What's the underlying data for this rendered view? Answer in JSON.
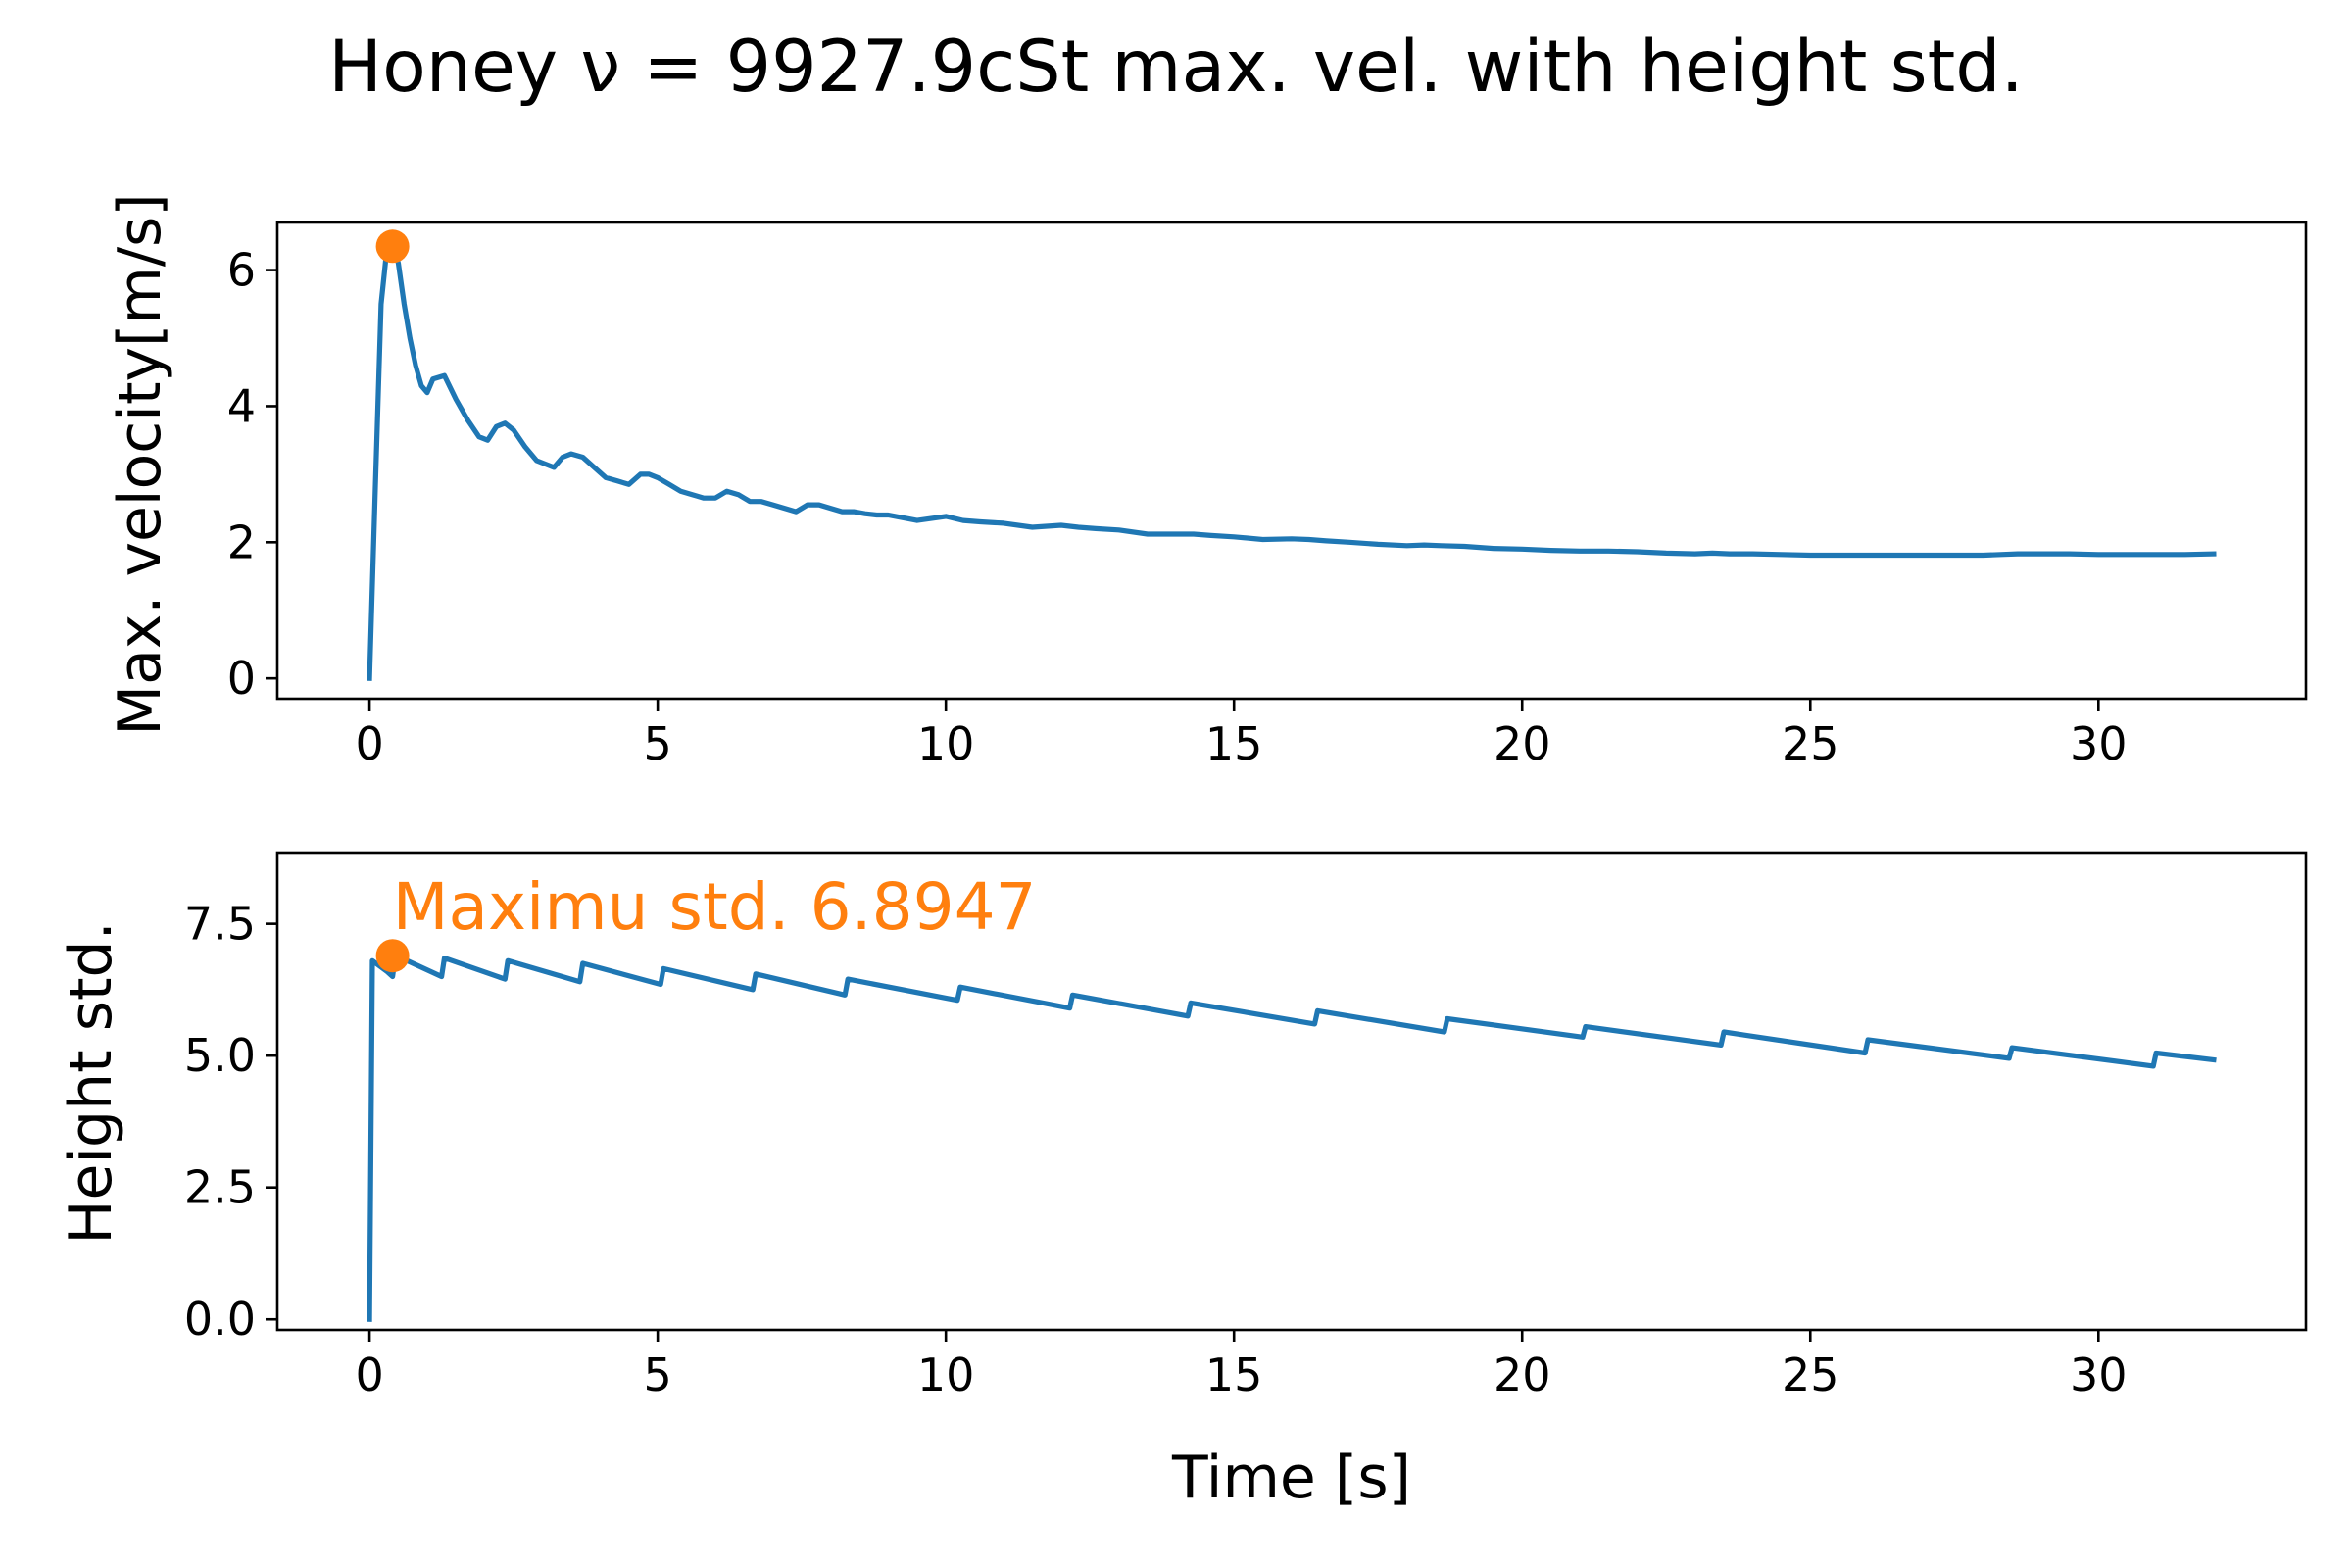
{
  "title": "Honey ν = 9927.9cSt  max. vel. with height std.",
  "colors": {
    "series": "#1f77b4",
    "marker": "#ff7f0e",
    "axes": "#000000",
    "background": "#ffffff"
  },
  "xlabel": "Time [s]",
  "chart_data": [
    {
      "type": "line",
      "id": "velocity",
      "ylabel": "Max. velocity[m/s]",
      "xlim": [
        -1.6,
        33.6
      ],
      "ylim": [
        -0.3,
        6.7
      ],
      "xticks": [
        0,
        5,
        10,
        15,
        20,
        25,
        30
      ],
      "xtick_labels": [
        "0",
        "5",
        "10",
        "15",
        "20",
        "25",
        "30"
      ],
      "yticks": [
        0,
        2,
        4,
        6
      ],
      "ytick_labels": [
        "0",
        "2",
        "4",
        "6"
      ],
      "grid": false,
      "series": [
        {
          "x": [
            0.0,
            0.1,
            0.2,
            0.3,
            0.4,
            0.5,
            0.6,
            0.7,
            0.8,
            0.9,
            1.0,
            1.1,
            1.3,
            1.5,
            1.7,
            1.9,
            2.05,
            2.2,
            2.35,
            2.5,
            2.7,
            2.9,
            3.05,
            3.2,
            3.35,
            3.5,
            3.7,
            3.9,
            4.1,
            4.3,
            4.5,
            4.7,
            4.85,
            5.0,
            5.2,
            5.4,
            5.6,
            5.8,
            6.0,
            6.2,
            6.4,
            6.6,
            6.8,
            7.0,
            7.2,
            7.4,
            7.6,
            7.8,
            8.0,
            8.2,
            8.4,
            8.6,
            8.8,
            9.0,
            9.5,
            10.0,
            10.3,
            10.6,
            11.0,
            11.5,
            12.0,
            12.3,
            12.6,
            13.0,
            13.5,
            14.0,
            14.3,
            14.6,
            15.0,
            15.5,
            16.0,
            16.3,
            16.6,
            17.0,
            17.5,
            18.0,
            18.3,
            18.6,
            19.0,
            19.5,
            20.0,
            20.5,
            21.0,
            21.5,
            22.0,
            22.5,
            23.0,
            23.3,
            23.6,
            24.0,
            24.5,
            25.0,
            25.5,
            25.8,
            26.2,
            26.6,
            27.0,
            27.5,
            28.0,
            28.3,
            28.6,
            29.0,
            29.5,
            30.0,
            30.5,
            31.0,
            31.5,
            32.0
          ],
          "y": [
            0.0,
            2.8,
            5.5,
            6.3,
            6.4,
            6.1,
            5.5,
            5.0,
            4.6,
            4.3,
            4.2,
            4.4,
            4.45,
            4.1,
            3.8,
            3.55,
            3.5,
            3.7,
            3.75,
            3.65,
            3.4,
            3.2,
            3.15,
            3.1,
            3.25,
            3.3,
            3.25,
            3.1,
            2.95,
            2.9,
            2.85,
            3.0,
            3.0,
            2.95,
            2.85,
            2.75,
            2.7,
            2.65,
            2.65,
            2.75,
            2.7,
            2.6,
            2.6,
            2.55,
            2.5,
            2.45,
            2.55,
            2.55,
            2.5,
            2.45,
            2.45,
            2.42,
            2.4,
            2.4,
            2.32,
            2.38,
            2.32,
            2.3,
            2.28,
            2.22,
            2.25,
            2.22,
            2.2,
            2.18,
            2.12,
            2.12,
            2.12,
            2.1,
            2.08,
            2.04,
            2.05,
            2.04,
            2.02,
            2.0,
            1.97,
            1.95,
            1.96,
            1.95,
            1.94,
            1.91,
            1.9,
            1.88,
            1.87,
            1.87,
            1.86,
            1.84,
            1.83,
            1.84,
            1.83,
            1.83,
            1.82,
            1.81,
            1.81,
            1.81,
            1.81,
            1.81,
            1.81,
            1.81,
            1.81,
            1.82,
            1.83,
            1.83,
            1.83,
            1.82,
            1.82,
            1.82,
            1.82,
            1.83
          ]
        }
      ],
      "marker": {
        "x": 0.4,
        "y": 6.35
      }
    },
    {
      "type": "line",
      "id": "height_std",
      "ylabel": "Height std.",
      "xlabel": "Time [s]",
      "xlim": [
        -1.6,
        33.6
      ],
      "ylim": [
        -0.2,
        8.85
      ],
      "xticks": [
        0,
        5,
        10,
        15,
        20,
        25,
        30
      ],
      "xtick_labels": [
        "0",
        "5",
        "10",
        "15",
        "20",
        "25",
        "30"
      ],
      "yticks": [
        0.0,
        2.5,
        5.0,
        7.5
      ],
      "ytick_labels": [
        "0.0",
        "2.5",
        "5.0",
        "7.5"
      ],
      "grid": false,
      "series": [
        {
          "x": [
            0.0,
            0.05,
            0.3,
            0.4,
            0.45,
            1.25,
            1.3,
            2.35,
            2.4,
            3.65,
            3.7,
            5.05,
            5.1,
            6.65,
            6.7,
            8.25,
            8.3,
            10.2,
            10.25,
            12.15,
            12.2,
            14.2,
            14.25,
            16.4,
            16.45,
            18.65,
            18.7,
            21.05,
            21.1,
            23.45,
            23.5,
            25.95,
            26.0,
            28.45,
            28.5,
            30.95,
            31.0,
            32.0
          ],
          "y": [
            0.0,
            6.8,
            6.6,
            6.5,
            6.9,
            6.5,
            6.85,
            6.45,
            6.8,
            6.4,
            6.75,
            6.35,
            6.65,
            6.25,
            6.55,
            6.15,
            6.45,
            6.05,
            6.3,
            5.9,
            6.15,
            5.75,
            6.0,
            5.6,
            5.85,
            5.45,
            5.7,
            5.35,
            5.55,
            5.2,
            5.45,
            5.05,
            5.3,
            4.95,
            5.15,
            4.8,
            5.05,
            4.92
          ]
        }
      ],
      "marker": {
        "x": 0.4,
        "y": 6.8947
      },
      "annotation": {
        "text": "Maximu std. 6.8947",
        "x": 0.4,
        "y": 7.4
      }
    }
  ]
}
